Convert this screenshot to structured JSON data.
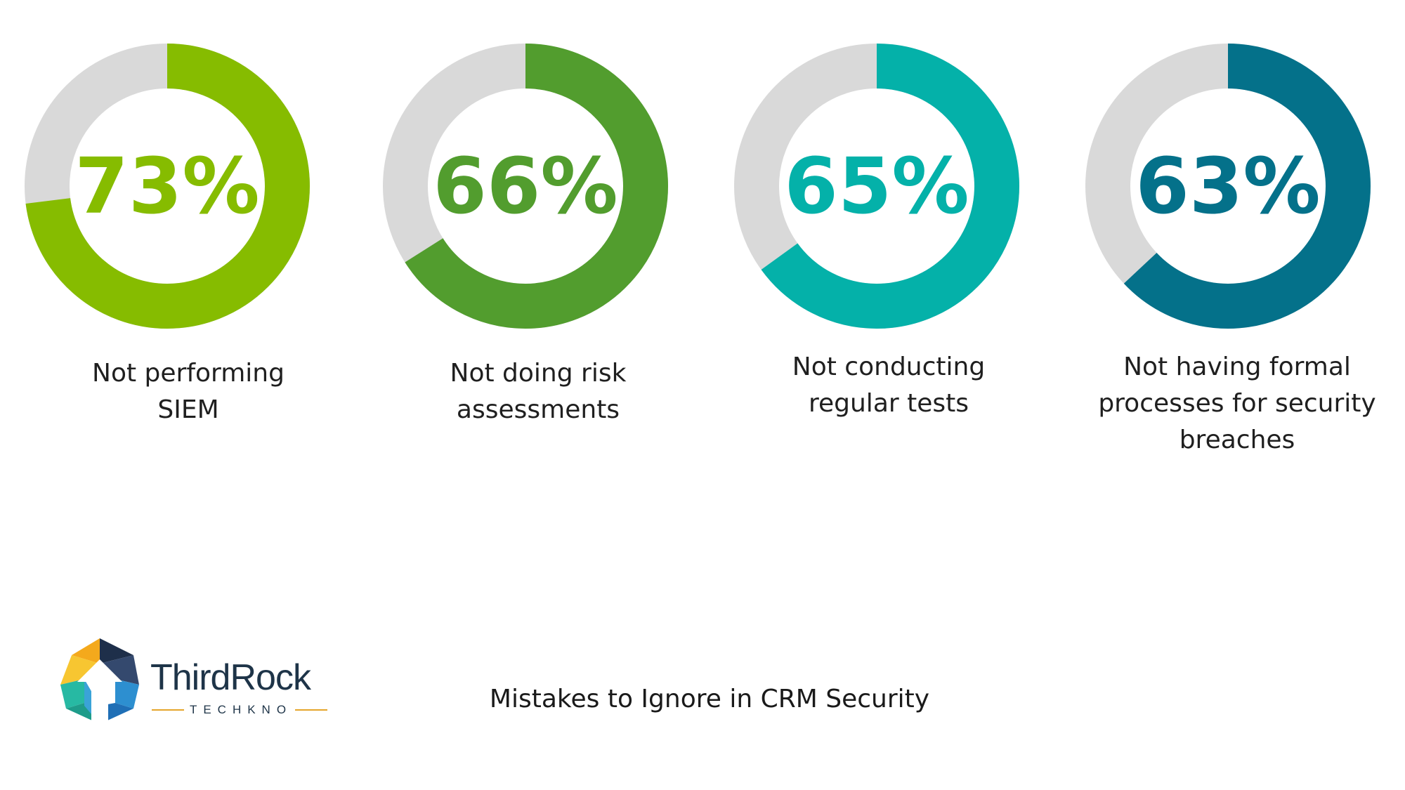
{
  "chart_data": {
    "type": "pie",
    "subtype": "donut",
    "items": [
      {
        "value": 73,
        "label": "73%",
        "caption_lines": [
          "Not performing",
          "SIEM"
        ],
        "color": "#86bc00"
      },
      {
        "value": 66,
        "label": "66%",
        "caption_lines": [
          "Not doing risk",
          "assessments"
        ],
        "color": "#529d2e"
      },
      {
        "value": 65,
        "label": "65%",
        "caption_lines": [
          "Not conducting",
          "regular tests"
        ],
        "color": "#04b1a9"
      },
      {
        "value": 63,
        "label": "63%",
        "caption_lines": [
          "Not having formal",
          "processes for security",
          "breaches"
        ],
        "color": "#04718a"
      }
    ],
    "track_color": "#d9d9d9"
  },
  "footer": {
    "title": "Mistakes to Ignore in CRM Security"
  },
  "brand": {
    "name": "ThirdRock",
    "subtitle": "TECHKNO"
  }
}
